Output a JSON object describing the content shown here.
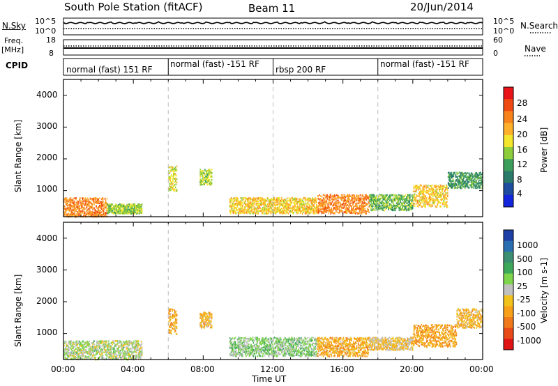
{
  "header": {
    "station": "South Pole Station (fitACF)",
    "beam": "Beam 11",
    "date": "20/Jun/2014"
  },
  "left_labels": {
    "nsky": "N.Sky",
    "freq": "Freq.",
    "mhz": "[MHz]",
    "cpid": "CPID"
  },
  "right_labels": {
    "nsearch": "N.Search",
    "nave": "Nave"
  },
  "noise_ticks": {
    "top": "10^5",
    "bottom": "10^0"
  },
  "freq_ticks": {
    "top": "18",
    "bottom": "8"
  },
  "nave_ticks": {
    "top": "60",
    "bottom": "0"
  },
  "cpid_segments": [
    {
      "label": "normal (fast) 151 RF",
      "start_hour": 0
    },
    {
      "label": "normal (fast) -151 RF",
      "start_hour": 6
    },
    {
      "label": "rbsp 200 RF",
      "start_hour": 12
    },
    {
      "label": "normal (fast) -151 RF",
      "start_hour": 18
    }
  ],
  "x_axis": {
    "title": "Time UT",
    "ticks": [
      "00:00",
      "04:00",
      "08:00",
      "12:00",
      "16:00",
      "20:00",
      "00:00"
    ]
  },
  "power_panel": {
    "ylabel": "Slant Range [km]",
    "yticks": [
      "4000",
      "3000",
      "2000",
      "1000"
    ],
    "colorbar_title": "Power [dB]",
    "colorbar_ticks": [
      "28",
      "24",
      "20",
      "16",
      "12",
      "8",
      "4"
    ],
    "colorbar_colors": [
      "#e8141a",
      "#f04a14",
      "#f8821c",
      "#ffb02a",
      "#f4e62c",
      "#8ccd3c",
      "#3c9e5a",
      "#2a7a6a",
      "#1e4c9e",
      "#1426dc"
    ]
  },
  "velocity_panel": {
    "ylabel": "Slant Range [km]",
    "yticks": [
      "4000",
      "3000",
      "2000",
      "1000"
    ],
    "colorbar_title": "Velocity [m s-1]",
    "colorbar_ticks": [
      "1000",
      "500",
      "100",
      "25",
      "-25",
      "-100",
      "-500",
      "-1000"
    ],
    "colorbar_colors": [
      "#1e3fa6",
      "#2a6fb0",
      "#3c8f72",
      "#3ea85a",
      "#7ed44a",
      "#c0c0c0",
      "#f2c21c",
      "#f8a01a",
      "#f07a1a",
      "#e84a18",
      "#e01414"
    ]
  },
  "chart_data": [
    {
      "type": "heatmap",
      "title": "Power",
      "xlabel": "Time UT",
      "ylabel": "Slant Range [km]",
      "xlim": [
        0,
        24
      ],
      "ylim": [
        180,
        4500
      ],
      "colorbar": {
        "label": "Power [dB]",
        "range": [
          0,
          30
        ]
      },
      "blocks": [
        {
          "t0": 0.0,
          "t1": 2.5,
          "r0": 200,
          "r1": 800,
          "power": 22
        },
        {
          "t0": 2.5,
          "t1": 4.5,
          "r0": 300,
          "r1": 600,
          "power": 14
        },
        {
          "t0": 6.0,
          "t1": 6.5,
          "r0": 1000,
          "r1": 1800,
          "power": 16
        },
        {
          "t0": 7.8,
          "t1": 8.5,
          "r0": 1200,
          "r1": 1700,
          "power": 14
        },
        {
          "t0": 9.5,
          "t1": 14.5,
          "r0": 300,
          "r1": 800,
          "power": 18
        },
        {
          "t0": 14.5,
          "t1": 17.5,
          "r0": 300,
          "r1": 900,
          "power": 22
        },
        {
          "t0": 17.5,
          "t1": 20.0,
          "r0": 400,
          "r1": 900,
          "power": 12
        },
        {
          "t0": 20.0,
          "t1": 22.0,
          "r0": 500,
          "r1": 1200,
          "power": 18
        },
        {
          "t0": 22.0,
          "t1": 24.0,
          "r0": 1100,
          "r1": 1600,
          "power": 10
        }
      ]
    },
    {
      "type": "heatmap",
      "title": "Velocity",
      "xlabel": "Time UT",
      "ylabel": "Slant Range [km]",
      "xlim": [
        0,
        24
      ],
      "ylim": [
        180,
        4500
      ],
      "colorbar": {
        "label": "Velocity [m s-1]",
        "range": [
          -1000,
          1000
        ]
      },
      "blocks": [
        {
          "t0": 0.0,
          "t1": 4.5,
          "r0": 200,
          "r1": 800,
          "velocity": 60
        },
        {
          "t0": 6.0,
          "t1": 6.5,
          "r0": 1000,
          "r1": 1800,
          "velocity": -300
        },
        {
          "t0": 7.8,
          "t1": 8.5,
          "r0": 1200,
          "r1": 1700,
          "velocity": -250
        },
        {
          "t0": 9.5,
          "t1": 14.5,
          "r0": 300,
          "r1": 900,
          "velocity": 150
        },
        {
          "t0": 14.5,
          "t1": 17.5,
          "r0": 300,
          "r1": 900,
          "velocity": -300
        },
        {
          "t0": 17.5,
          "t1": 20.0,
          "r0": 500,
          "r1": 900,
          "velocity": -150
        },
        {
          "t0": 20.0,
          "t1": 22.5,
          "r0": 600,
          "r1": 1300,
          "velocity": -350
        },
        {
          "t0": 22.5,
          "t1": 24.0,
          "r0": 1200,
          "r1": 1800,
          "velocity": -250
        }
      ]
    }
  ]
}
